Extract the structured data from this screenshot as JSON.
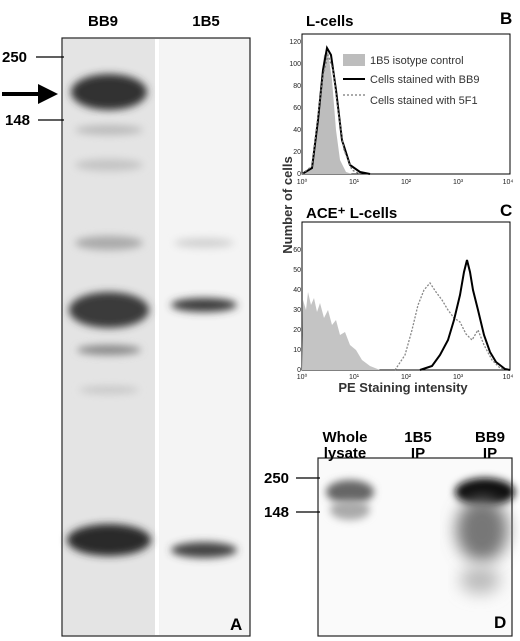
{
  "panel_a": {
    "lanes": [
      "BB9",
      "1B5"
    ],
    "markers": [
      "250",
      "148"
    ],
    "label": "A"
  },
  "panel_b": {
    "title": "L-cells",
    "label": "B",
    "legend": [
      "1B5 isotype control",
      "Cells stained with BB9",
      "Cells stained with 5F1"
    ],
    "yticks": [
      "0",
      "20",
      "40",
      "60",
      "80",
      "100",
      "120"
    ],
    "xticks": [
      "10⁰",
      "10¹",
      "10²",
      "10³",
      "10⁴"
    ]
  },
  "y_axis_label": "Number of cells",
  "panel_c": {
    "title": "ACE⁺ L-cells",
    "label": "C",
    "yticks": [
      "0",
      "10",
      "20",
      "30",
      "40",
      "50",
      "60"
    ],
    "xticks": [
      "10⁰",
      "10¹",
      "10²",
      "10³",
      "10⁴"
    ],
    "x_axis_label": "PE Staining intensity"
  },
  "panel_d": {
    "lanes": [
      [
        "Whole",
        "lysate"
      ],
      [
        "1B5",
        "IP"
      ],
      [
        "BB9",
        "IP"
      ]
    ],
    "markers": [
      "250",
      "148"
    ],
    "label": "D"
  }
}
